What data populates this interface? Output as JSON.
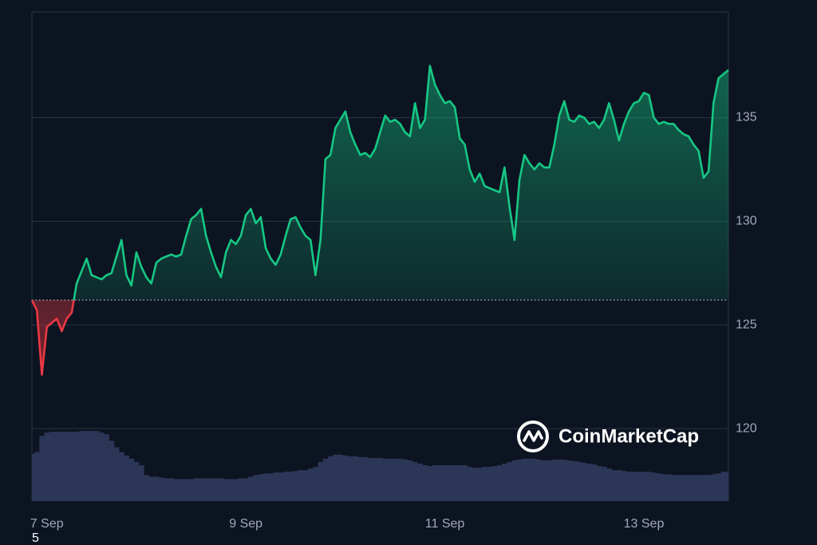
{
  "chart_data": {
    "type": "line",
    "categories": [
      null,
      null,
      null,
      "7 Sep",
      null,
      null,
      null,
      null,
      null,
      null,
      null,
      null,
      null,
      null,
      null,
      null,
      null,
      null,
      null,
      null,
      null,
      null,
      null,
      null,
      null,
      null,
      null,
      null,
      null,
      null,
      null,
      null,
      null,
      null,
      null,
      null,
      null,
      null,
      null,
      null,
      null,
      null,
      null,
      "9 Sep",
      null,
      null,
      null,
      null,
      null,
      null,
      null,
      null,
      null,
      null,
      null,
      null,
      null,
      null,
      null,
      null,
      null,
      null,
      null,
      null,
      null,
      null,
      null,
      null,
      null,
      null,
      null,
      null,
      null,
      null,
      null,
      null,
      null,
      null,
      null,
      null,
      null,
      null,
      null,
      "11 Sep",
      null,
      null,
      null,
      null,
      null,
      null,
      null,
      null,
      null,
      null,
      null,
      null,
      null,
      null,
      null,
      null,
      null,
      null,
      null,
      null,
      null,
      null,
      null,
      null,
      null,
      null,
      null,
      null,
      null,
      null,
      null,
      null,
      null,
      null,
      null,
      null,
      null,
      null,
      null,
      "13 Sep",
      null,
      null,
      null,
      null,
      null,
      null,
      null,
      null,
      null,
      null,
      null,
      null,
      null,
      null,
      null,
      null,
      null
    ],
    "series": [
      {
        "color": "#16c784",
        "values": [
          126.2,
          125.7,
          122.6,
          124.9,
          125.1,
          125.3,
          124.7,
          125.3,
          125.6,
          127.0,
          127.6,
          128.2,
          127.4,
          127.3,
          127.2,
          127.4,
          127.5,
          128.3,
          129.1,
          127.4,
          126.9,
          128.5,
          127.8,
          127.3,
          127.0,
          128.0,
          128.2,
          128.3,
          128.4,
          128.3,
          128.4,
          129.3,
          130.1,
          130.3,
          130.6,
          129.3,
          128.5,
          127.8,
          127.3,
          128.5,
          129.1,
          128.9,
          129.3,
          130.3,
          130.6,
          129.9,
          130.2,
          128.7,
          128.2,
          127.9,
          128.4,
          129.3,
          130.1,
          130.2,
          129.7,
          129.3,
          129.1,
          127.4,
          129.1,
          133.0,
          133.2,
          134.5,
          134.9,
          135.3,
          134.3,
          133.7,
          133.2,
          133.3,
          133.1,
          133.5,
          134.3,
          135.1,
          134.8,
          134.9,
          134.7,
          134.3,
          134.1,
          135.7,
          134.5,
          134.9,
          137.5,
          136.6,
          136.1,
          135.7,
          135.8,
          135.5,
          134.0,
          133.7,
          132.5,
          131.9,
          132.3,
          131.7,
          131.6,
          131.5,
          131.4,
          132.6,
          130.7,
          129.1,
          132.0,
          133.2,
          132.8,
          132.5,
          132.8,
          132.6,
          132.6,
          133.7,
          135.1,
          135.8,
          134.9,
          134.8,
          135.1,
          135.0,
          134.7,
          134.8,
          134.5,
          134.9,
          135.7,
          134.9,
          133.9,
          134.7,
          135.3,
          135.7,
          135.8,
          136.2,
          136.1,
          135.0,
          134.7,
          134.8,
          134.7,
          134.7,
          134.4,
          134.2,
          134.1,
          133.7,
          133.4,
          132.1,
          132.4,
          135.7,
          136.9,
          137.1,
          137.3
        ]
      },
      {
        "color": "#2c3657",
        "axis": "y2",
        "values": [
          58,
          60,
          80,
          84,
          85,
          85,
          85,
          85,
          85,
          85,
          86,
          86,
          86,
          86,
          84,
          82,
          74,
          66,
          60,
          56,
          52,
          48,
          44,
          32,
          30,
          30,
          29,
          28,
          28,
          27,
          27,
          27,
          27,
          28,
          28,
          28,
          28,
          28,
          28,
          27,
          27,
          27,
          28,
          28,
          30,
          32,
          33,
          34,
          34,
          35,
          35,
          36,
          36,
          37,
          38,
          38,
          40,
          42,
          48,
          52,
          55,
          57,
          57,
          56,
          55,
          55,
          54,
          54,
          53,
          53,
          53,
          52,
          52,
          52,
          52,
          51,
          50,
          48,
          46,
          44,
          43,
          44,
          44,
          44,
          44,
          44,
          44,
          44,
          42,
          41,
          41,
          42,
          42,
          43,
          44,
          46,
          48,
          50,
          51,
          52,
          52,
          52,
          51,
          50,
          50,
          51,
          51,
          51,
          50,
          49,
          48,
          47,
          46,
          45,
          43,
          42,
          40,
          38,
          38,
          37,
          36,
          36,
          36,
          36,
          36,
          35,
          34,
          33,
          33,
          32,
          32,
          32,
          32,
          32,
          32,
          32,
          32,
          33,
          34,
          36,
          36
        ]
      }
    ],
    "baseline": 126.2,
    "below_color": "#ea3943",
    "ylim": [
      116.5,
      140.1
    ],
    "yticks": [
      120,
      125,
      130,
      135
    ],
    "y2lim": [
      0,
      600
    ],
    "grid": true,
    "watermark": "CoinMarketCap",
    "stray_label": "5"
  }
}
